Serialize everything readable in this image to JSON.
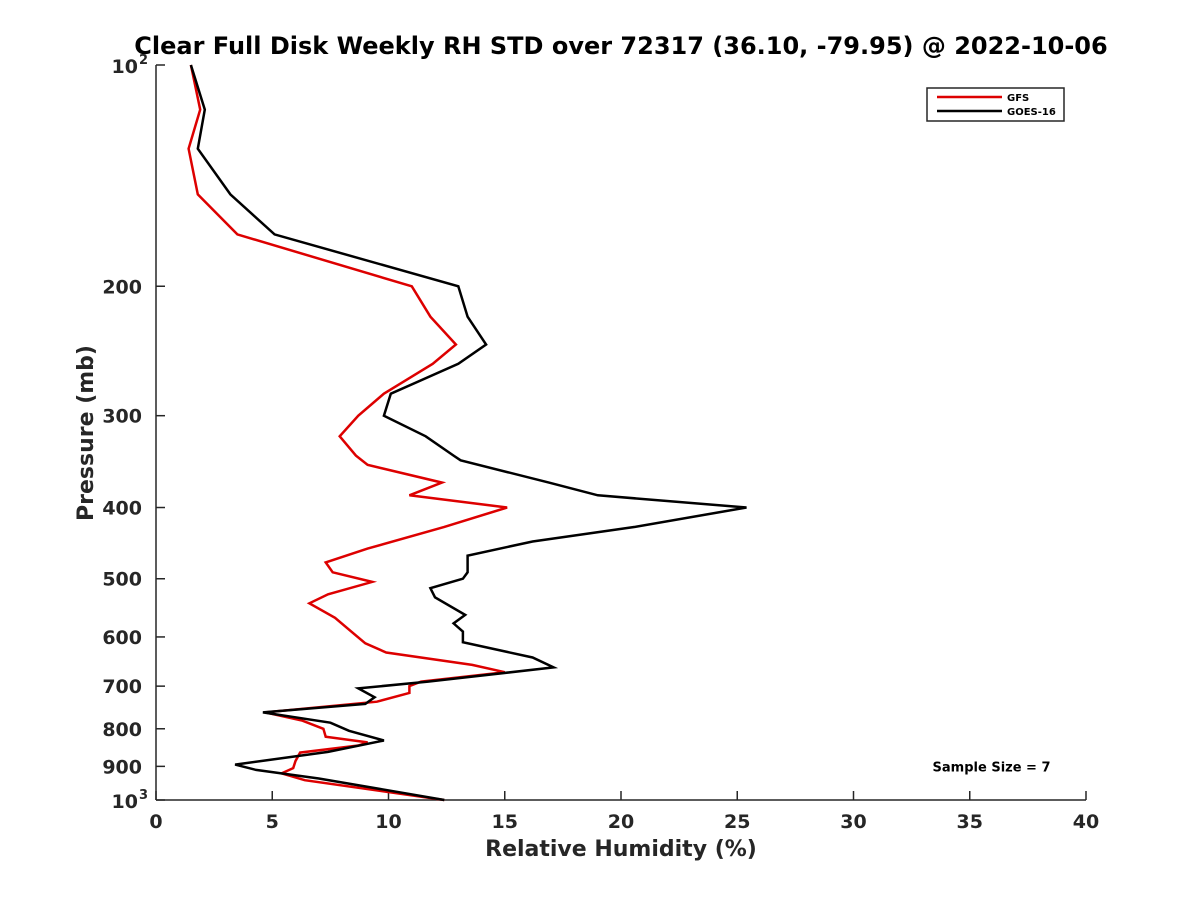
{
  "chart_data": {
    "type": "line",
    "title": "Clear Full Disk Weekly RH STD over 72317 (36.10, -79.95) @ 2022-10-06",
    "xlabel": "Relative Humidity (%)",
    "ylabel": "Pressure (mb)",
    "xlim": [
      0,
      40
    ],
    "ylim": [
      100,
      1000
    ],
    "y_scale": "log",
    "y_reversed": true,
    "x_ticks": [
      0,
      5,
      10,
      15,
      20,
      25,
      30,
      35,
      40
    ],
    "y_ticks": [
      {
        "value": 100,
        "base": "10",
        "exp": "2"
      },
      {
        "value": 200,
        "label": "200"
      },
      {
        "value": 300,
        "label": "300"
      },
      {
        "value": 400,
        "label": "400"
      },
      {
        "value": 500,
        "label": "500"
      },
      {
        "value": 600,
        "label": "600"
      },
      {
        "value": 700,
        "label": "700"
      },
      {
        "value": 800,
        "label": "800"
      },
      {
        "value": 900,
        "label": "900"
      },
      {
        "value": 1000,
        "base": "10",
        "exp": "3"
      }
    ],
    "grid": false,
    "legend_position": "top-right",
    "series": [
      {
        "name": "GFS",
        "color": "#dd0000",
        "points": [
          [
            1.5,
            100
          ],
          [
            1.9,
            115
          ],
          [
            1.4,
            130
          ],
          [
            1.8,
            150
          ],
          [
            3.5,
            170
          ],
          [
            11.0,
            200
          ],
          [
            11.8,
            220
          ],
          [
            12.9,
            240
          ],
          [
            11.9,
            255
          ],
          [
            9.8,
            280
          ],
          [
            8.7,
            300
          ],
          [
            7.9,
            320
          ],
          [
            8.6,
            340
          ],
          [
            9.1,
            350
          ],
          [
            12.3,
            370
          ],
          [
            10.9,
            385
          ],
          [
            15.1,
            400
          ],
          [
            12.4,
            425
          ],
          [
            9.1,
            455
          ],
          [
            7.3,
            475
          ],
          [
            7.6,
            490
          ],
          [
            9.3,
            505
          ],
          [
            7.4,
            525
          ],
          [
            6.6,
            540
          ],
          [
            7.7,
            565
          ],
          [
            8.4,
            590
          ],
          [
            9.0,
            612
          ],
          [
            9.9,
            630
          ],
          [
            13.6,
            655
          ],
          [
            15.0,
            670
          ],
          [
            11.4,
            690
          ],
          [
            10.9,
            700
          ],
          [
            10.9,
            715
          ],
          [
            9.5,
            735
          ],
          [
            4.7,
            760
          ],
          [
            6.3,
            780
          ],
          [
            7.2,
            800
          ],
          [
            7.3,
            820
          ],
          [
            9.1,
            835
          ],
          [
            8.7,
            843
          ],
          [
            6.2,
            862
          ],
          [
            6.0,
            885
          ],
          [
            5.9,
            905
          ],
          [
            5.4,
            920
          ],
          [
            6.4,
            940
          ],
          [
            12.4,
            1000
          ]
        ]
      },
      {
        "name": "GOES-16",
        "color": "#000000",
        "points": [
          [
            1.5,
            100
          ],
          [
            2.1,
            115
          ],
          [
            1.8,
            130
          ],
          [
            3.2,
            150
          ],
          [
            5.1,
            170
          ],
          [
            13.0,
            200
          ],
          [
            13.4,
            220
          ],
          [
            14.2,
            240
          ],
          [
            13.0,
            255
          ],
          [
            10.1,
            280
          ],
          [
            9.8,
            300
          ],
          [
            11.6,
            320
          ],
          [
            12.8,
            340
          ],
          [
            13.1,
            345
          ],
          [
            16.9,
            370
          ],
          [
            19.0,
            385
          ],
          [
            25.4,
            400
          ],
          [
            20.6,
            425
          ],
          [
            16.2,
            445
          ],
          [
            13.4,
            465
          ],
          [
            13.4,
            490
          ],
          [
            13.2,
            500
          ],
          [
            11.8,
            515
          ],
          [
            12.0,
            530
          ],
          [
            13.3,
            560
          ],
          [
            12.8,
            575
          ],
          [
            13.2,
            590
          ],
          [
            13.2,
            610
          ],
          [
            16.2,
            640
          ],
          [
            17.1,
            660
          ],
          [
            11.7,
            690
          ],
          [
            8.7,
            705
          ],
          [
            9.4,
            725
          ],
          [
            9.0,
            740
          ],
          [
            4.6,
            760
          ],
          [
            7.5,
            785
          ],
          [
            8.3,
            805
          ],
          [
            9.8,
            830
          ],
          [
            7.4,
            860
          ],
          [
            3.4,
            895
          ],
          [
            4.3,
            910
          ],
          [
            7.0,
            935
          ],
          [
            12.4,
            1000
          ]
        ]
      }
    ],
    "annotations": [
      {
        "text": "Sample Size = 7",
        "x": 33.4,
        "y": 900
      }
    ]
  }
}
